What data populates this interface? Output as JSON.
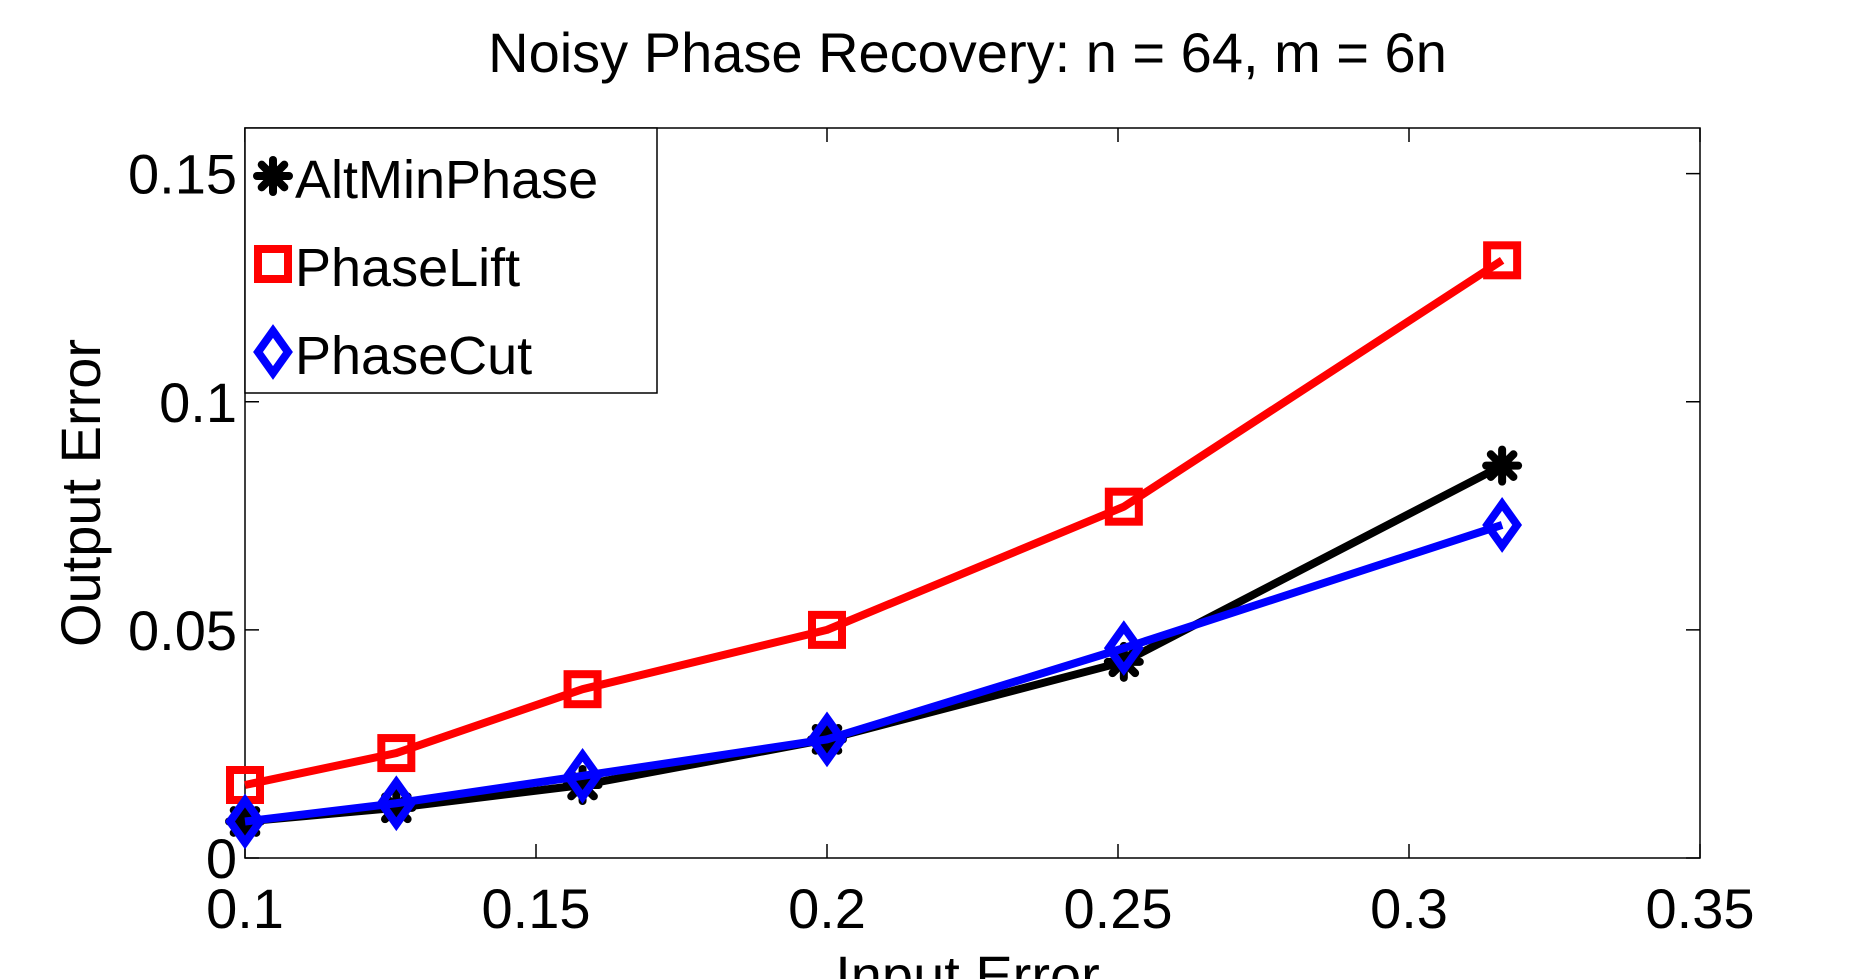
{
  "chart_data": {
    "type": "line",
    "title": "Noisy Phase Recovery: n = 64, m = 6n",
    "xlabel": "Input Error",
    "ylabel": "Output Error",
    "xlim": [
      0.1,
      0.35
    ],
    "ylim": [
      0,
      0.16
    ],
    "xticks": [
      0.1,
      0.15,
      0.2,
      0.25,
      0.3,
      0.35
    ],
    "xtick_labels": [
      "0.1",
      "0.15",
      "0.2",
      "0.25",
      "0.3",
      "0.35"
    ],
    "yticks": [
      0,
      0.05,
      0.1,
      0.15
    ],
    "ytick_labels": [
      "0",
      "0.05",
      "0.1",
      "0.15"
    ],
    "grid": false,
    "legend_position": "top-left",
    "x": [
      0.1,
      0.126,
      0.158,
      0.2,
      0.251,
      0.316
    ],
    "series": [
      {
        "name": "AltMinPhase",
        "color": "#000000",
        "marker": "asterisk",
        "values": [
          0.008,
          0.011,
          0.016,
          0.026,
          0.043,
          0.086
        ]
      },
      {
        "name": "PhaseLift",
        "color": "#ff0000",
        "marker": "square",
        "values": [
          0.016,
          0.023,
          0.037,
          0.05,
          0.077,
          0.131
        ]
      },
      {
        "name": "PhaseCut",
        "color": "#0000ff",
        "marker": "diamond",
        "values": [
          0.008,
          0.012,
          0.018,
          0.026,
          0.046,
          0.073
        ]
      }
    ]
  }
}
